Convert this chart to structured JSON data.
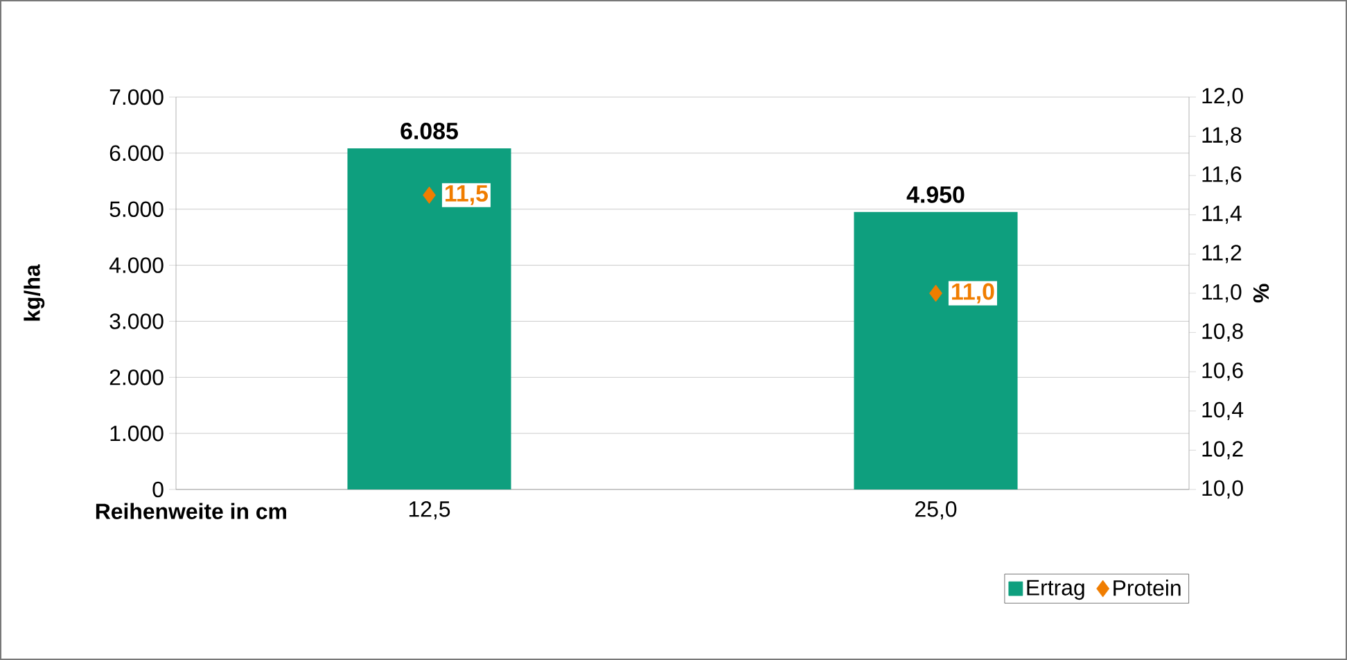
{
  "chart_data": {
    "type": "bar",
    "categories": [
      "12,5",
      "25,0"
    ],
    "xlabel": "Reihenweite in cm",
    "ylabel": "kg/ha",
    "y2label": "%",
    "series": [
      {
        "name": "Ertrag",
        "color": "#0e9f7e",
        "values": [
          6085,
          4950
        ],
        "value_labels": [
          "6.085",
          "4.950"
        ]
      },
      {
        "name": "Protein",
        "type": "scatter",
        "axis": "y2",
        "color": "#f07d00",
        "marker": "diamond",
        "values": [
          11.5,
          11.0
        ],
        "value_labels": [
          "11,5",
          "11,0"
        ]
      }
    ],
    "ylim": [
      0,
      7000
    ],
    "yticks": [
      0,
      {
        "value": 1000,
        "label": "1.000"
      },
      {
        "value": 2000,
        "label": "2.000"
      },
      {
        "value": 3000,
        "label": "3.000"
      },
      {
        "value": 4000,
        "label": "4.000"
      },
      {
        "value": 5000,
        "label": "5.000"
      },
      {
        "value": 6000,
        "label": "6.000"
      },
      {
        "value": 7000,
        "label": "7.000"
      }
    ],
    "y2lim": [
      10,
      12
    ],
    "y2ticks": [
      {
        "value": 10,
        "label": "10,0"
      },
      {
        "value": 10.2,
        "label": "10,2"
      },
      {
        "value": 10.4,
        "label": "10,4"
      },
      {
        "value": 10.6,
        "label": "10,6"
      },
      {
        "value": 10.8,
        "label": "10,8"
      },
      {
        "value": 11,
        "label": "11,0"
      },
      {
        "value": 11.2,
        "label": "11,2"
      },
      {
        "value": 11.4,
        "label": "11,4"
      },
      {
        "value": 11.6,
        "label": "11,6"
      },
      {
        "value": 11.8,
        "label": "11,8"
      },
      {
        "value": 12,
        "label": "12,0"
      }
    ],
    "grid": "y",
    "legend": "bottom right"
  }
}
